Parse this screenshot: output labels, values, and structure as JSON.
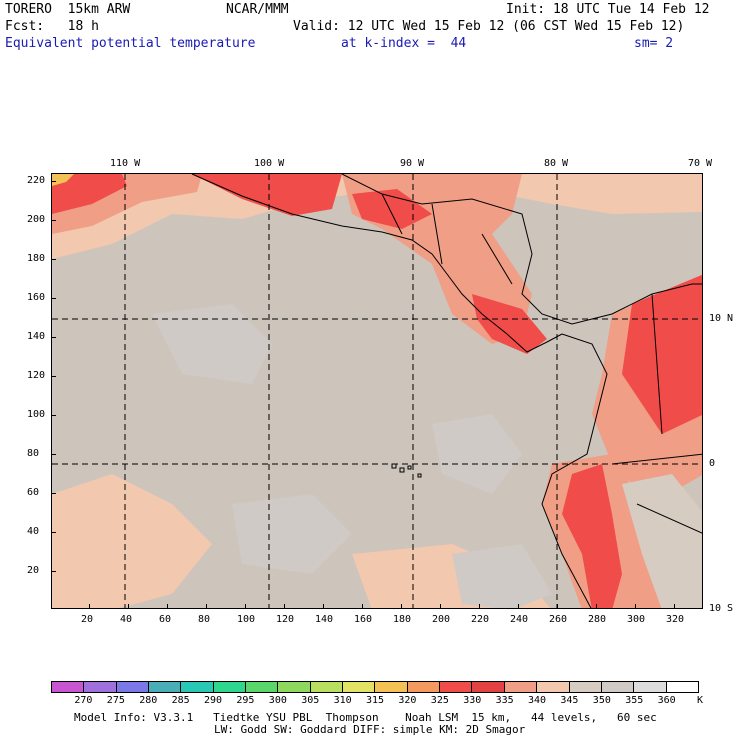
{
  "header": {
    "model": "TORERO  15km ARW",
    "center": "NCAR/MMM",
    "init": "Init: 18 UTC Tue 14 Feb 12",
    "fcst": "Fcst:   18 h",
    "valid": "Valid: 12 UTC Wed 15 Feb 12 (06 CST Wed 15 Feb 12)",
    "field": "Equivalent potential temperature",
    "level": "at k-index =  44",
    "smooth": "sm= 2"
  },
  "top_axis": {
    "labels": [
      "110 W",
      "100 W",
      "90 W",
      "80 W",
      "70 W"
    ]
  },
  "right_axis": {
    "labels": [
      "10 N",
      "0",
      "10 S"
    ]
  },
  "left_axis": {
    "labels": [
      "220",
      "200",
      "180",
      "160",
      "140",
      "120",
      "100",
      "80",
      "60",
      "40",
      "20"
    ]
  },
  "bottom_axis": {
    "labels": [
      "20",
      "40",
      "60",
      "80",
      "100",
      "120",
      "140",
      "160",
      "180",
      "200",
      "220",
      "240",
      "260",
      "280",
      "300",
      "320"
    ]
  },
  "colorbar": {
    "labels": [
      "270",
      "275",
      "280",
      "285",
      "290",
      "295",
      "300",
      "305",
      "310",
      "315",
      "320",
      "325",
      "330",
      "335",
      "340",
      "345",
      "350",
      "355",
      "360"
    ],
    "unit": "K",
    "colors": [
      "#c855d2",
      "#a070dc",
      "#7b78e8",
      "#4aaeb8",
      "#28c8b4",
      "#2ed68e",
      "#5ad66a",
      "#8ed85e",
      "#b8e05e",
      "#e2e264",
      "#f4c254",
      "#f49a5e",
      "#f04c4a",
      "#e24242",
      "#f09e86",
      "#f2c8ae",
      "#d6ccc2",
      "#cfcac6",
      "#dcdcdc",
      "#ffffff"
    ]
  },
  "footer": {
    "line1": "Model Info: V3.3.1   Tiedtke YSU PBL  Thompson    Noah LSM  15 km,   44 levels,   60 sec",
    "line2": "LW: Godd SW: Goddard DIFF: simple KM: 2D Smagor"
  }
}
